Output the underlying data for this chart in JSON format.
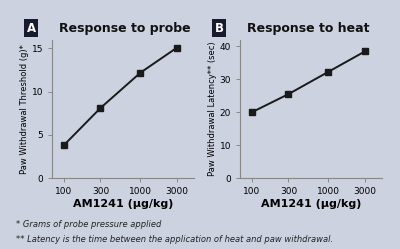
{
  "background_color": "#ccd2df",
  "panel_A": {
    "label": "A",
    "title": "Response to probe",
    "x": [
      100,
      300,
      1000,
      3000
    ],
    "y": [
      3.8,
      8.1,
      12.2,
      15.1
    ],
    "xlabel": "AM1241 (μg/kg)",
    "ylabel": "Paw Withdrawal Threshold (g)*",
    "xlim_log": [
      70,
      5000
    ],
    "ylim": [
      0,
      16
    ],
    "yticks": [
      0,
      5,
      10,
      15
    ],
    "xticks": [
      100,
      300,
      1000,
      3000
    ],
    "xtick_labels": [
      "100",
      "300",
      "1000",
      "3000"
    ]
  },
  "panel_B": {
    "label": "B",
    "title": "Response to heat",
    "x": [
      100,
      300,
      1000,
      3000
    ],
    "y": [
      20.0,
      25.5,
      32.3,
      38.5
    ],
    "xlabel": "AM1241 (μg/kg)",
    "ylabel": "Paw Withdrawal Latency** (sec)",
    "xlim_log": [
      70,
      5000
    ],
    "ylim": [
      0,
      42
    ],
    "yticks": [
      0,
      10,
      20,
      30,
      40
    ],
    "xticks": [
      100,
      300,
      1000,
      3000
    ],
    "xtick_labels": [
      "100",
      "300",
      "1000",
      "3000"
    ]
  },
  "footnote1": "* Grams of probe pressure applied",
  "footnote2": "** Latency is the time between the application of heat and paw withdrawal.",
  "line_color": "#1a1a1a",
  "marker": "s",
  "marker_size": 4,
  "marker_color": "#1a1a1a",
  "label_bg": "#1a1a2e",
  "spine_color": "#888888",
  "title_fontsize": 9,
  "label_fontsize": 7,
  "xlabel_fontsize": 8,
  "ylabel_fontsize": 6,
  "tick_fontsize": 6.5,
  "footnote_fontsize": 6
}
